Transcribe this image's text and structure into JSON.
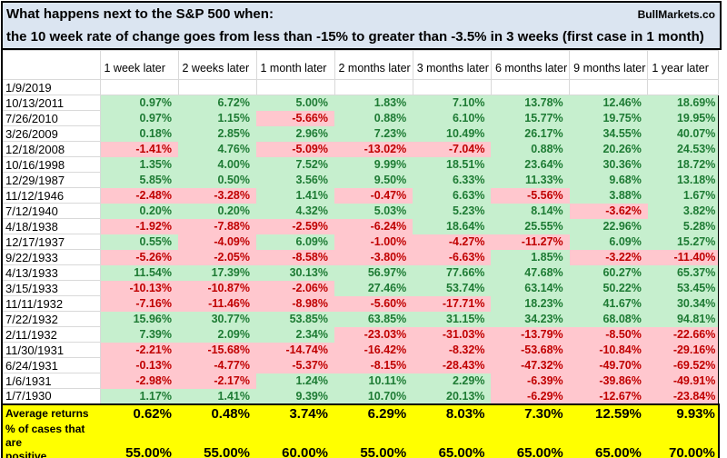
{
  "title": {
    "line1": "What happens next to the S&P 500 when:",
    "line2": "the 10 week rate of change goes from less than -15% to greater than -3.5% in 3 weeks (first case in 1 month)",
    "brand": "BullMarkets.co"
  },
  "colors": {
    "title_bg": "#dbe5f1",
    "green_bg": "#c6efce",
    "green_text": "#1e7b34",
    "red_bg": "#ffc7ce",
    "red_text": "#c00000",
    "summary_bg": "#ffff00",
    "gridline": "#d9d9d9"
  },
  "chart_data": {
    "type": "table",
    "columns": [
      "1 week later",
      "2 weeks later",
      "1 month later",
      "2 months later",
      "3 months later",
      "6 months later",
      "9 months later",
      "1 year later"
    ],
    "rows": [
      {
        "date": "1/9/2019",
        "cells": []
      },
      {
        "date": "10/13/2011",
        "cells": [
          [
            "0.97%",
            "g"
          ],
          [
            "6.72%",
            "g"
          ],
          [
            "5.00%",
            "g"
          ],
          [
            "1.83%",
            "g"
          ],
          [
            "7.10%",
            "g"
          ],
          [
            "13.78%",
            "g"
          ],
          [
            "12.46%",
            "g"
          ],
          [
            "18.69%",
            "g"
          ]
        ]
      },
      {
        "date": "7/26/2010",
        "cells": [
          [
            "0.97%",
            "g"
          ],
          [
            "1.15%",
            "g"
          ],
          [
            "-5.66%",
            "r"
          ],
          [
            "0.88%",
            "g"
          ],
          [
            "6.10%",
            "g"
          ],
          [
            "15.77%",
            "g"
          ],
          [
            "19.75%",
            "g"
          ],
          [
            "19.95%",
            "g"
          ]
        ]
      },
      {
        "date": "3/26/2009",
        "cells": [
          [
            "0.18%",
            "g"
          ],
          [
            "2.85%",
            "g"
          ],
          [
            "2.96%",
            "g"
          ],
          [
            "7.23%",
            "g"
          ],
          [
            "10.49%",
            "g"
          ],
          [
            "26.17%",
            "g"
          ],
          [
            "34.55%",
            "g"
          ],
          [
            "40.07%",
            "g"
          ]
        ]
      },
      {
        "date": "12/18/2008",
        "cells": [
          [
            "-1.41%",
            "r"
          ],
          [
            "4.76%",
            "g"
          ],
          [
            "-5.09%",
            "r"
          ],
          [
            "-13.02%",
            "r"
          ],
          [
            "-7.04%",
            "r"
          ],
          [
            "0.88%",
            "g"
          ],
          [
            "20.26%",
            "g"
          ],
          [
            "24.53%",
            "g"
          ]
        ]
      },
      {
        "date": "10/16/1998",
        "cells": [
          [
            "1.35%",
            "g"
          ],
          [
            "4.00%",
            "g"
          ],
          [
            "7.52%",
            "g"
          ],
          [
            "9.99%",
            "g"
          ],
          [
            "18.51%",
            "g"
          ],
          [
            "23.64%",
            "g"
          ],
          [
            "30.36%",
            "g"
          ],
          [
            "18.72%",
            "g"
          ]
        ]
      },
      {
        "date": "12/29/1987",
        "cells": [
          [
            "5.85%",
            "g"
          ],
          [
            "0.50%",
            "g"
          ],
          [
            "3.56%",
            "g"
          ],
          [
            "9.50%",
            "g"
          ],
          [
            "6.33%",
            "g"
          ],
          [
            "11.33%",
            "g"
          ],
          [
            "9.68%",
            "g"
          ],
          [
            "13.18%",
            "g"
          ]
        ]
      },
      {
        "date": "11/12/1946",
        "cells": [
          [
            "-2.48%",
            "r"
          ],
          [
            "-3.28%",
            "r"
          ],
          [
            "1.41%",
            "g"
          ],
          [
            "-0.47%",
            "r"
          ],
          [
            "6.63%",
            "g"
          ],
          [
            "-5.56%",
            "r"
          ],
          [
            "3.88%",
            "g"
          ],
          [
            "1.67%",
            "g"
          ]
        ]
      },
      {
        "date": "7/12/1940",
        "cells": [
          [
            "0.20%",
            "g"
          ],
          [
            "0.20%",
            "g"
          ],
          [
            "4.32%",
            "g"
          ],
          [
            "5.03%",
            "g"
          ],
          [
            "5.23%",
            "g"
          ],
          [
            "8.14%",
            "g"
          ],
          [
            "-3.62%",
            "r"
          ],
          [
            "3.82%",
            "g"
          ]
        ]
      },
      {
        "date": "4/18/1938",
        "cells": [
          [
            "-1.92%",
            "r"
          ],
          [
            "-7.88%",
            "r"
          ],
          [
            "-2.59%",
            "r"
          ],
          [
            "-6.24%",
            "r"
          ],
          [
            "18.64%",
            "g"
          ],
          [
            "25.55%",
            "g"
          ],
          [
            "22.96%",
            "g"
          ],
          [
            "5.28%",
            "g"
          ]
        ]
      },
      {
        "date": "12/17/1937",
        "cells": [
          [
            "0.55%",
            "g"
          ],
          [
            "-4.09%",
            "r"
          ],
          [
            "6.09%",
            "g"
          ],
          [
            "-1.00%",
            "r"
          ],
          [
            "-4.27%",
            "r"
          ],
          [
            "-11.27%",
            "r"
          ],
          [
            "6.09%",
            "g"
          ],
          [
            "15.27%",
            "g"
          ]
        ]
      },
      {
        "date": "9/22/1933",
        "cells": [
          [
            "-5.26%",
            "r"
          ],
          [
            "-2.05%",
            "r"
          ],
          [
            "-8.58%",
            "r"
          ],
          [
            "-3.80%",
            "r"
          ],
          [
            "-6.63%",
            "r"
          ],
          [
            "1.85%",
            "g"
          ],
          [
            "-3.22%",
            "r"
          ],
          [
            "-11.40%",
            "r"
          ]
        ]
      },
      {
        "date": "4/13/1933",
        "cells": [
          [
            "11.54%",
            "g"
          ],
          [
            "17.39%",
            "g"
          ],
          [
            "30.13%",
            "g"
          ],
          [
            "56.97%",
            "g"
          ],
          [
            "77.66%",
            "g"
          ],
          [
            "47.68%",
            "g"
          ],
          [
            "60.27%",
            "g"
          ],
          [
            "65.37%",
            "g"
          ]
        ]
      },
      {
        "date": "3/15/1933",
        "cells": [
          [
            "-10.13%",
            "r"
          ],
          [
            "-10.87%",
            "r"
          ],
          [
            "-2.06%",
            "r"
          ],
          [
            "27.46%",
            "g"
          ],
          [
            "53.74%",
            "g"
          ],
          [
            "63.14%",
            "g"
          ],
          [
            "50.22%",
            "g"
          ],
          [
            "53.45%",
            "g"
          ]
        ]
      },
      {
        "date": "11/11/1932",
        "cells": [
          [
            "-7.16%",
            "r"
          ],
          [
            "-11.46%",
            "r"
          ],
          [
            "-8.98%",
            "r"
          ],
          [
            "-5.60%",
            "r"
          ],
          [
            "-17.71%",
            "r"
          ],
          [
            "18.23%",
            "g"
          ],
          [
            "41.67%",
            "g"
          ],
          [
            "30.34%",
            "g"
          ]
        ]
      },
      {
        "date": "7/22/1932",
        "cells": [
          [
            "15.96%",
            "g"
          ],
          [
            "30.77%",
            "g"
          ],
          [
            "53.85%",
            "g"
          ],
          [
            "63.85%",
            "g"
          ],
          [
            "31.15%",
            "g"
          ],
          [
            "34.23%",
            "g"
          ],
          [
            "68.08%",
            "g"
          ],
          [
            "94.81%",
            "g"
          ]
        ]
      },
      {
        "date": "2/11/1932",
        "cells": [
          [
            "7.39%",
            "g"
          ],
          [
            "2.09%",
            "g"
          ],
          [
            "2.34%",
            "g"
          ],
          [
            "-23.03%",
            "r"
          ],
          [
            "-31.03%",
            "r"
          ],
          [
            "-13.79%",
            "r"
          ],
          [
            "-8.50%",
            "r"
          ],
          [
            "-22.66%",
            "r"
          ]
        ]
      },
      {
        "date": "11/30/1931",
        "cells": [
          [
            "-2.21%",
            "r"
          ],
          [
            "-15.68%",
            "r"
          ],
          [
            "-14.74%",
            "r"
          ],
          [
            "-16.42%",
            "r"
          ],
          [
            "-8.32%",
            "r"
          ],
          [
            "-53.68%",
            "r"
          ],
          [
            "-10.84%",
            "r"
          ],
          [
            "-29.16%",
            "r"
          ]
        ]
      },
      {
        "date": "6/24/1931",
        "cells": [
          [
            "-0.13%",
            "r"
          ],
          [
            "-4.77%",
            "r"
          ],
          [
            "-5.37%",
            "r"
          ],
          [
            "-8.15%",
            "r"
          ],
          [
            "-28.43%",
            "r"
          ],
          [
            "-47.32%",
            "r"
          ],
          [
            "-49.70%",
            "r"
          ],
          [
            "-69.52%",
            "r"
          ]
        ]
      },
      {
        "date": "1/6/1931",
        "cells": [
          [
            "-2.98%",
            "r"
          ],
          [
            "-2.17%",
            "r"
          ],
          [
            "1.24%",
            "g"
          ],
          [
            "10.11%",
            "g"
          ],
          [
            "2.29%",
            "g"
          ],
          [
            "-6.39%",
            "r"
          ],
          [
            "-39.86%",
            "r"
          ],
          [
            "-49.91%",
            "r"
          ]
        ]
      },
      {
        "date": "1/7/1930",
        "cells": [
          [
            "1.17%",
            "g"
          ],
          [
            "1.41%",
            "g"
          ],
          [
            "9.39%",
            "g"
          ],
          [
            "10.70%",
            "g"
          ],
          [
            "20.13%",
            "g"
          ],
          [
            "-6.29%",
            "r"
          ],
          [
            "-12.67%",
            "r"
          ],
          [
            "-23.84%",
            "r"
          ]
        ]
      }
    ],
    "summary": {
      "avg_label": "Average returns",
      "avg_values": [
        "0.62%",
        "0.48%",
        "3.74%",
        "6.29%",
        "8.03%",
        "7.30%",
        "12.59%",
        "9.93%"
      ],
      "pct_label_lines": [
        "% of cases that are",
        "positive"
      ],
      "pct_values": [
        "55.00%",
        "55.00%",
        "60.00%",
        "55.00%",
        "65.00%",
        "65.00%",
        "65.00%",
        "70.00%"
      ]
    }
  }
}
